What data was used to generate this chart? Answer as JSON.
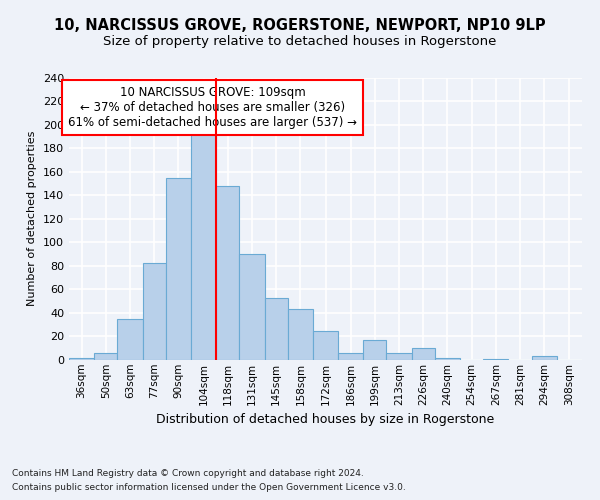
{
  "title1": "10, NARCISSUS GROVE, ROGERSTONE, NEWPORT, NP10 9LP",
  "title2": "Size of property relative to detached houses in Rogerstone",
  "xlabel": "Distribution of detached houses by size in Rogerstone",
  "ylabel": "Number of detached properties",
  "footnote1": "Contains HM Land Registry data © Crown copyright and database right 2024.",
  "footnote2": "Contains public sector information licensed under the Open Government Licence v3.0.",
  "annotation_line1": "10 NARCISSUS GROVE: 109sqm",
  "annotation_line2": "← 37% of detached houses are smaller (326)",
  "annotation_line3": "61% of semi-detached houses are larger (537) →",
  "bar_color": "#b8d0ea",
  "bar_edge_color": "#6aaad4",
  "vline_color": "red",
  "vline_x": 111,
  "categories": [
    "36sqm",
    "50sqm",
    "63sqm",
    "77sqm",
    "90sqm",
    "104sqm",
    "118sqm",
    "131sqm",
    "145sqm",
    "158sqm",
    "172sqm",
    "186sqm",
    "199sqm",
    "213sqm",
    "226sqm",
    "240sqm",
    "254sqm",
    "267sqm",
    "281sqm",
    "294sqm",
    "308sqm"
  ],
  "bin_edges": [
    29,
    43,
    56,
    70,
    83,
    97,
    111,
    124,
    138,
    151,
    165,
    179,
    193,
    206,
    220,
    233,
    247,
    260,
    274,
    287,
    301,
    315
  ],
  "values": [
    2,
    6,
    35,
    82,
    155,
    201,
    148,
    90,
    53,
    43,
    25,
    6,
    17,
    6,
    10,
    2,
    0,
    1,
    0,
    3,
    0
  ],
  "ylim": [
    0,
    240
  ],
  "yticks": [
    0,
    20,
    40,
    60,
    80,
    100,
    120,
    140,
    160,
    180,
    200,
    220,
    240
  ],
  "background_color": "#eef2f9",
  "grid_color": "#ffffff",
  "title_fontsize": 10.5,
  "subtitle_fontsize": 9.5,
  "annotation_box_color": "#ffffff",
  "annotation_box_edge": "red",
  "annotation_fontsize": 8.5,
  "ylabel_fontsize": 8,
  "xlabel_fontsize": 9,
  "footnote_fontsize": 6.5,
  "xtick_fontsize": 7.5,
  "ytick_fontsize": 8
}
